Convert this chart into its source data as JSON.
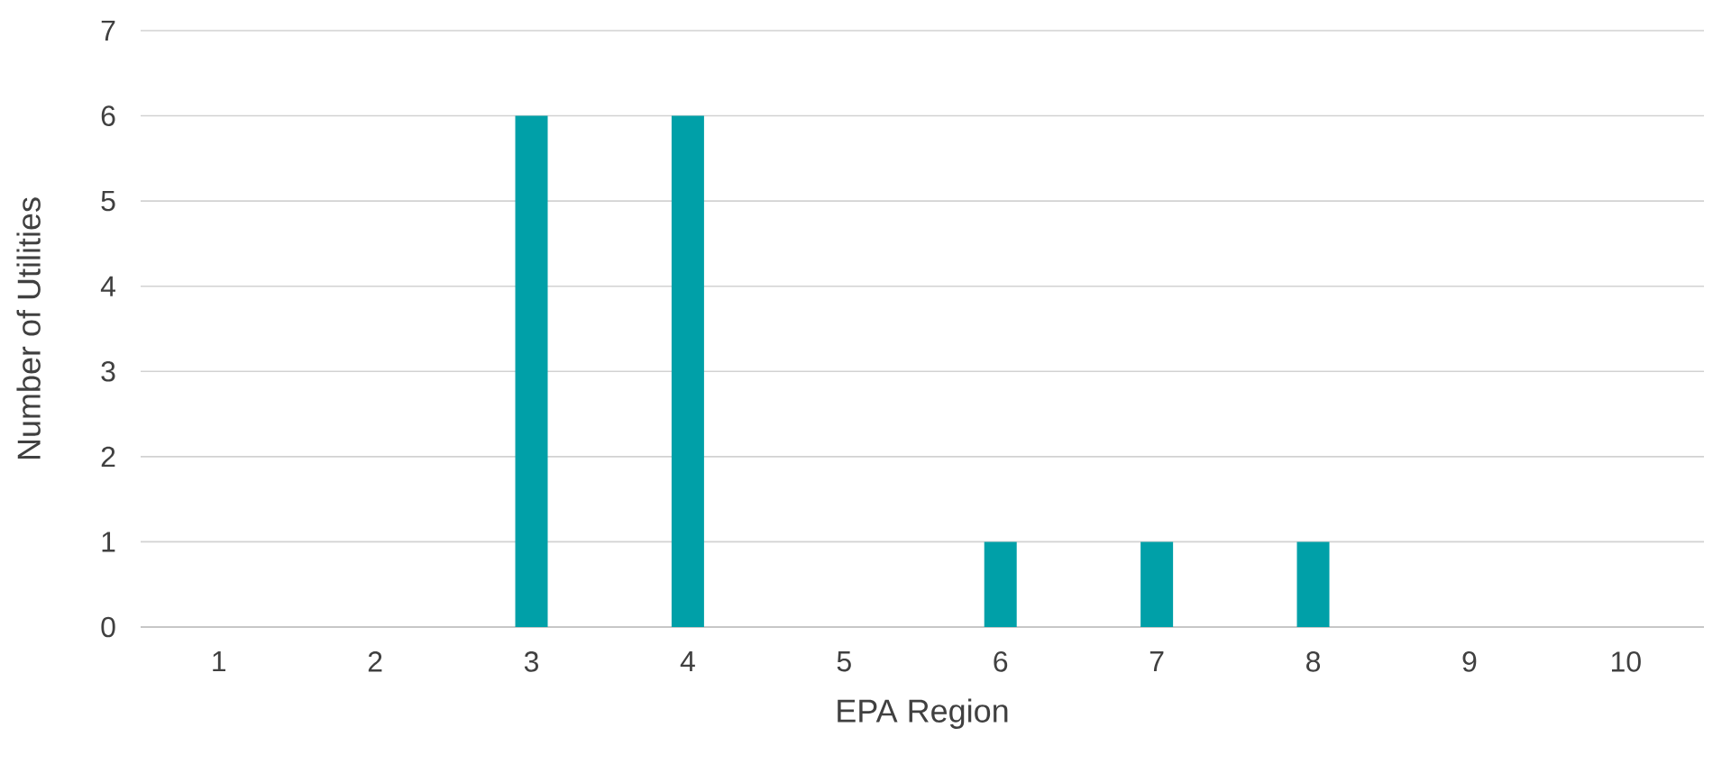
{
  "chart_data": {
    "type": "bar",
    "xlabel": "EPA Region",
    "ylabel": "Number of Utilities",
    "categories": [
      "1",
      "2",
      "3",
      "4",
      "5",
      "6",
      "7",
      "8",
      "9",
      "10"
    ],
    "values": [
      0,
      0,
      6,
      6,
      0,
      1,
      1,
      1,
      0,
      0
    ],
    "color": "#00a0a8",
    "ylim": [
      0,
      7
    ],
    "yticks": [
      0,
      1,
      2,
      3,
      4,
      5,
      6,
      7
    ],
    "grid": "y"
  }
}
